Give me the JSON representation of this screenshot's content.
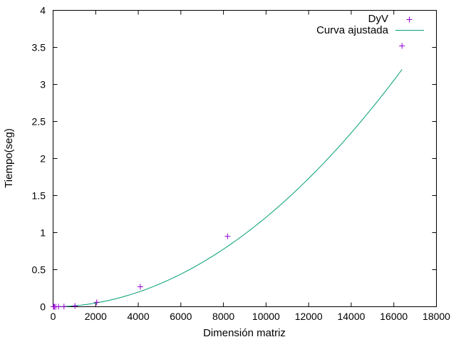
{
  "chart_data": {
    "type": "scatter",
    "title": "",
    "xlabel": "Dimensión matriz",
    "ylabel": "Tiempo(seg)",
    "xlim": [
      0,
      18000
    ],
    "ylim": [
      0,
      4
    ],
    "xticks": [
      0,
      2000,
      4000,
      6000,
      8000,
      10000,
      12000,
      14000,
      16000,
      18000
    ],
    "yticks": [
      0,
      0.5,
      1,
      1.5,
      2,
      2.5,
      3,
      3.5,
      4
    ],
    "xtick_labels": [
      "0",
      "2000",
      "4000",
      "6000",
      "8000",
      "10000",
      "12000",
      "14000",
      "16000",
      "18000"
    ],
    "ytick_labels": [
      "0",
      "0.5",
      "1",
      "1.5",
      "2",
      "2.5",
      "3",
      "3.5",
      "4"
    ],
    "grid": false,
    "legend_position": "top-right",
    "series": [
      {
        "name": "DyV",
        "kind": "points",
        "marker": "+",
        "color": "#9400d3",
        "x": [
          16,
          32,
          64,
          128,
          256,
          512,
          1024,
          2048,
          4096,
          8192,
          16384
        ],
        "y": [
          0.0,
          0.0,
          0.0,
          0.0,
          0.001,
          0.002,
          0.01,
          0.06,
          0.27,
          0.95,
          3.52
        ]
      },
      {
        "name": "Curva ajustada",
        "kind": "line",
        "color": "#009e73",
        "model": "power",
        "coef": 1.52e-08,
        "exponent": 1.975,
        "x_start": 0,
        "x_end": 16384
      }
    ]
  }
}
